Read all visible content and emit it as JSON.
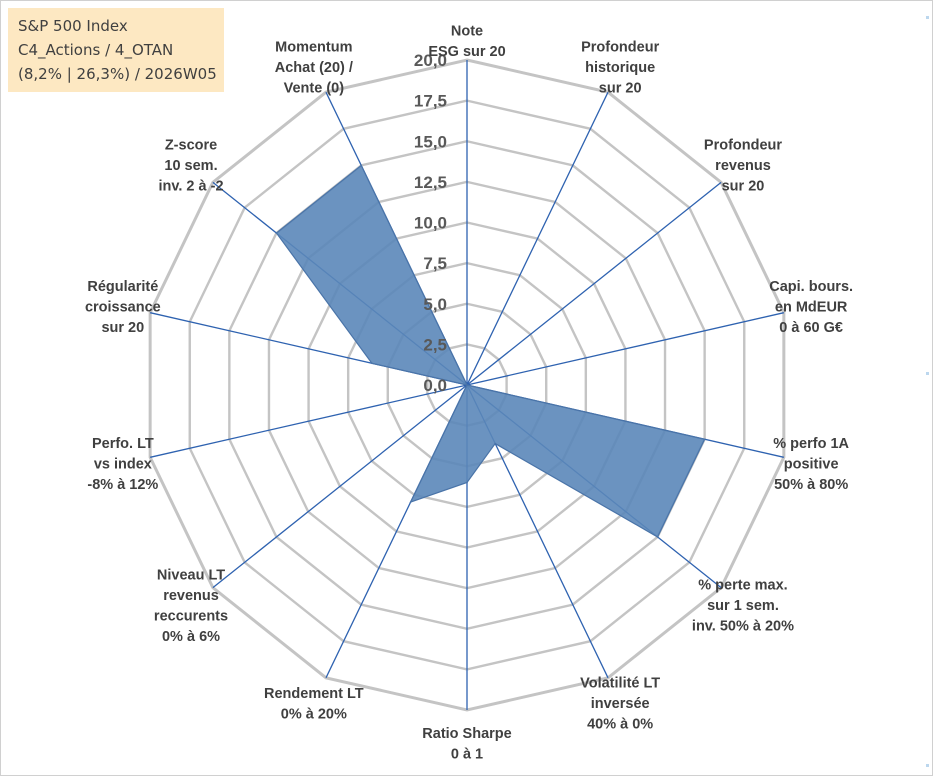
{
  "header": {
    "index_name": "S&P 500 Index",
    "portfolio": "C4_Actions / 4_OTAN",
    "stats": "(8,2% | 26,3%) / 2026W05"
  },
  "chart_data": {
    "type": "radar",
    "title": "S&P 500 Index",
    "rmin": 0,
    "rmax": 20,
    "ticks": [
      0,
      2.5,
      5,
      7.5,
      10,
      12.5,
      15,
      17.5,
      20
    ],
    "tick_labels": [
      "0,0",
      "2,5",
      "5,0",
      "7,5",
      "10,0",
      "12,5",
      "15,0",
      "17,5",
      "20,0"
    ],
    "axes": [
      {
        "name": "note-esg",
        "lines": [
          "Note",
          "ESG sur 20"
        ],
        "value": 0
      },
      {
        "name": "profondeur-historique",
        "lines": [
          "Profondeur",
          "historique",
          "sur 20"
        ],
        "value": 0
      },
      {
        "name": "profondeur-revenus",
        "lines": [
          "Profondeur",
          "revenus",
          "sur 20"
        ],
        "value": 0
      },
      {
        "name": "capi-bours",
        "lines": [
          "Capi. bours.",
          "en MdEUR",
          "0 à 60 G€"
        ],
        "value": 0
      },
      {
        "name": "perfo-1a-positive",
        "lines": [
          "% perfo 1A",
          "positive",
          "50% à 80%"
        ],
        "value": 15
      },
      {
        "name": "perte-max",
        "lines": [
          "% perte max.",
          "sur 1 sem.",
          "inv. 50% à 20%"
        ],
        "value": 15
      },
      {
        "name": "volatilite-lt",
        "lines": [
          "Volatilité LT",
          "inversée",
          "40% à 0%"
        ],
        "value": 4
      },
      {
        "name": "ratio-sharpe",
        "lines": [
          "Ratio Sharpe",
          "0 à 1"
        ],
        "value": 6
      },
      {
        "name": "rendement-lt",
        "lines": [
          "Rendement LT",
          "0% à 20%"
        ],
        "value": 8
      },
      {
        "name": "niveau-lt-revenus",
        "lines": [
          "Niveau LT",
          "revenus",
          "reccurents",
          "0% à 6%"
        ],
        "value": 0
      },
      {
        "name": "perfo-lt-vs-index",
        "lines": [
          "Perfo. LT",
          "vs index",
          "-8% à 12%"
        ],
        "value": 0
      },
      {
        "name": "regularite-croissance",
        "lines": [
          "Régularité",
          "croissance",
          "sur 20"
        ],
        "value": 6
      },
      {
        "name": "z-score",
        "lines": [
          "Z-score",
          "10 sem.",
          "inv. 2 à -2"
        ],
        "value": 15
      },
      {
        "name": "momentum",
        "lines": [
          "Momentum",
          "Achat (20) /",
          "Vente (0)"
        ],
        "value": 15
      }
    ],
    "series": [
      {
        "name": "S&P 500 Index",
        "color": "#5b87b9"
      }
    ],
    "grid_color": "#c4c4c4",
    "spoke_color": "#2e62b0"
  }
}
